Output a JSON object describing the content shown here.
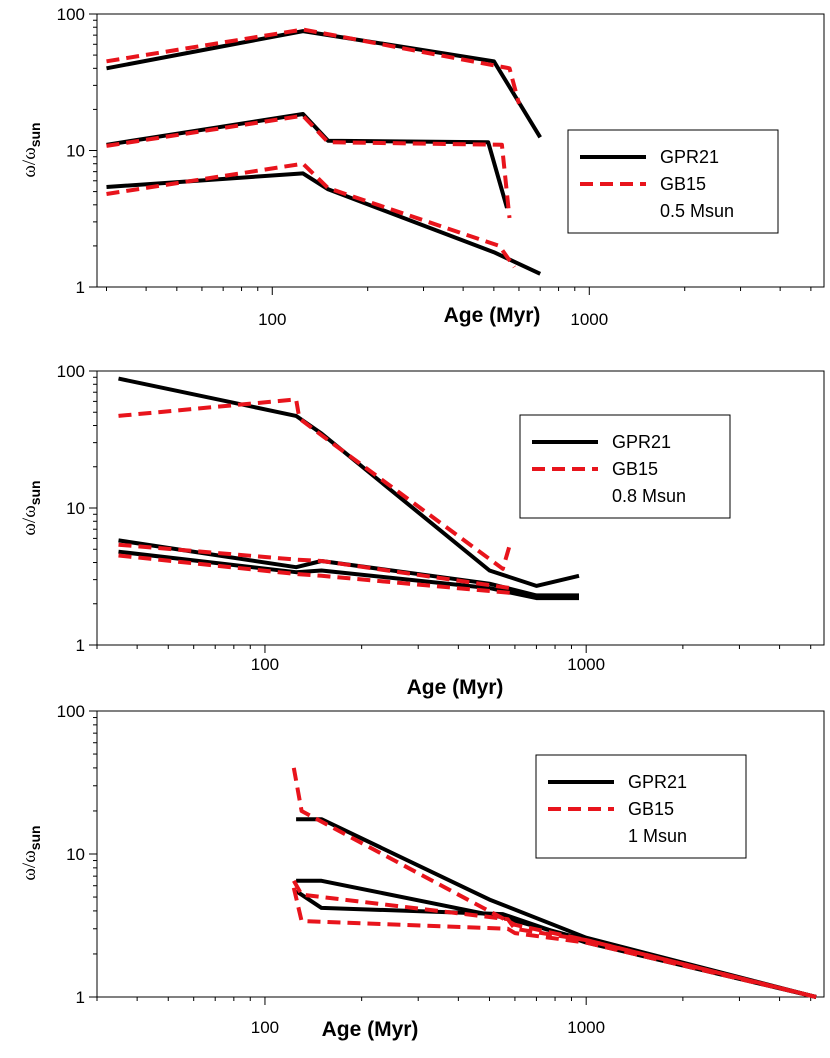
{
  "colors": {
    "GPR21": "#000000",
    "GB15": "#e8141c"
  },
  "chart_data": [
    {
      "type": "line",
      "title": "",
      "xlabel": "Age (Myr)",
      "ylabel_main": "ω/ω",
      "ylabel_sub": "sun",
      "xscale": "log",
      "yscale": "log",
      "xlim": [
        28,
        5500
      ],
      "ylim": [
        1,
        100
      ],
      "xticks": [
        100,
        1000
      ],
      "yticks": [
        1,
        10,
        100
      ],
      "xticklabels": [
        "100",
        "1000"
      ],
      "yticklabels": [
        "1",
        "10",
        "100"
      ],
      "legend": {
        "entries": [
          "GPR21",
          "GB15"
        ],
        "note": "0.5 Msun",
        "placement": "middle-right"
      },
      "series": [
        {
          "name": "GPR21",
          "points": [
            [
              30,
              40
            ],
            [
              125,
              75
            ],
            [
              500,
              45
            ],
            [
              700,
              12.5
            ]
          ]
        },
        {
          "name": "GPR21",
          "points": [
            [
              30,
              11
            ],
            [
              125,
              18.5
            ],
            [
              150,
              11.8
            ],
            [
              480,
              11.5
            ],
            [
              550,
              3.8
            ]
          ]
        },
        {
          "name": "GPR21",
          "points": [
            [
              30,
              5.4
            ],
            [
              125,
              6.8
            ],
            [
              150,
              5.2
            ],
            [
              500,
              1.8
            ],
            [
              700,
              1.25
            ]
          ]
        },
        {
          "name": "GB15",
          "points": [
            [
              30,
              45
            ],
            [
              125,
              77
            ],
            [
              500,
              42
            ],
            [
              560,
              40
            ],
            [
              600,
              22
            ]
          ]
        },
        {
          "name": "GB15",
          "points": [
            [
              30,
              10.8
            ],
            [
              125,
              18
            ],
            [
              150,
              11.5
            ],
            [
              530,
              11
            ],
            [
              560,
              3.2
            ]
          ]
        },
        {
          "name": "GB15",
          "points": [
            [
              30,
              4.8
            ],
            [
              125,
              8
            ],
            [
              150,
              5.3
            ],
            [
              520,
              2
            ],
            [
              580,
              1.4
            ]
          ]
        }
      ]
    },
    {
      "type": "line",
      "title": "",
      "xlabel": "Age (Myr)",
      "ylabel_main": "ω/ω",
      "ylabel_sub": "sun",
      "xscale": "log",
      "yscale": "log",
      "xlim": [
        30,
        5500
      ],
      "ylim": [
        1,
        100
      ],
      "xticks": [
        100,
        1000
      ],
      "yticks": [
        1,
        10,
        100
      ],
      "xticklabels": [
        "100",
        "1000"
      ],
      "yticklabels": [
        "1",
        "10",
        "100"
      ],
      "legend": {
        "entries": [
          "GPR21",
          "GB15"
        ],
        "note": "0.8 Msun",
        "placement": "upper-right"
      },
      "series": [
        {
          "name": "GPR21",
          "points": [
            [
              35,
              88
            ],
            [
              125,
              47
            ],
            [
              150,
              35
            ],
            [
              500,
              3.5
            ],
            [
              700,
              2.7
            ],
            [
              950,
              3.2
            ]
          ]
        },
        {
          "name": "GPR21",
          "points": [
            [
              35,
              5.8
            ],
            [
              125,
              3.7
            ],
            [
              150,
              4.1
            ],
            [
              500,
              2.8
            ],
            [
              700,
              2.3
            ],
            [
              950,
              2.3
            ]
          ]
        },
        {
          "name": "GPR21",
          "points": [
            [
              35,
              4.8
            ],
            [
              125,
              3.4
            ],
            [
              150,
              3.5
            ],
            [
              500,
              2.6
            ],
            [
              700,
              2.2
            ],
            [
              950,
              2.2
            ]
          ]
        },
        {
          "name": "GB15",
          "points": [
            [
              35,
              47
            ],
            [
              125,
              62
            ],
            [
              128,
              45
            ],
            [
              150,
              34
            ],
            [
              550,
              3.6
            ],
            [
              580,
              5.5
            ]
          ]
        },
        {
          "name": "GB15",
          "points": [
            [
              35,
              5.4
            ],
            [
              125,
              4.2
            ],
            [
              150,
              4.1
            ],
            [
              580,
              2.6
            ]
          ]
        },
        {
          "name": "GB15",
          "points": [
            [
              35,
              4.5
            ],
            [
              125,
              3.3
            ],
            [
              150,
              3.2
            ],
            [
              580,
              2.4
            ]
          ]
        }
      ]
    },
    {
      "type": "line",
      "title": "",
      "xlabel": "Age (Myr)",
      "ylabel_main": "ω/ω",
      "ylabel_sub": "sun",
      "xscale": "log",
      "yscale": "log",
      "xlim": [
        30,
        5500
      ],
      "ylim": [
        1,
        100
      ],
      "xticks": [
        100,
        1000
      ],
      "yticks": [
        1,
        10,
        100
      ],
      "xticklabels": [
        "100",
        "1000"
      ],
      "yticklabels": [
        "1",
        "10",
        "100"
      ],
      "legend": {
        "entries": [
          "GPR21",
          "GB15"
        ],
        "note": "1 Msun",
        "placement": "upper-right"
      },
      "series": [
        {
          "name": "GPR21",
          "points": [
            [
              125,
              17.5
            ],
            [
              150,
              17.5
            ],
            [
              500,
              4.8
            ],
            [
              1000,
              2.6
            ],
            [
              5200,
              1
            ]
          ]
        },
        {
          "name": "GPR21",
          "points": [
            [
              125,
              6.5
            ],
            [
              150,
              6.5
            ],
            [
              550,
              3.6
            ],
            [
              1000,
              2.5
            ],
            [
              5200,
              1
            ]
          ]
        },
        {
          "name": "GPR21",
          "points": [
            [
              125,
              5.5
            ],
            [
              150,
              4.2
            ],
            [
              550,
              3.8
            ],
            [
              1000,
              2.4
            ],
            [
              5200,
              1
            ]
          ]
        },
        {
          "name": "GB15",
          "points": [
            [
              123,
              40
            ],
            [
              130,
              20
            ],
            [
              600,
              3.2
            ],
            [
              1000,
              2.5
            ],
            [
              5200,
              1
            ]
          ]
        },
        {
          "name": "GB15",
          "points": [
            [
              123,
              6.5
            ],
            [
              130,
              5.2
            ],
            [
              570,
              3.5
            ],
            [
              600,
              3
            ],
            [
              1000,
              2.5
            ],
            [
              5200,
              1
            ]
          ]
        },
        {
          "name": "GB15",
          "points": [
            [
              123,
              5.8
            ],
            [
              130,
              3.4
            ],
            [
              570,
              3
            ],
            [
              600,
              2.8
            ],
            [
              1000,
              2.4
            ],
            [
              5200,
              1
            ]
          ]
        }
      ]
    }
  ]
}
